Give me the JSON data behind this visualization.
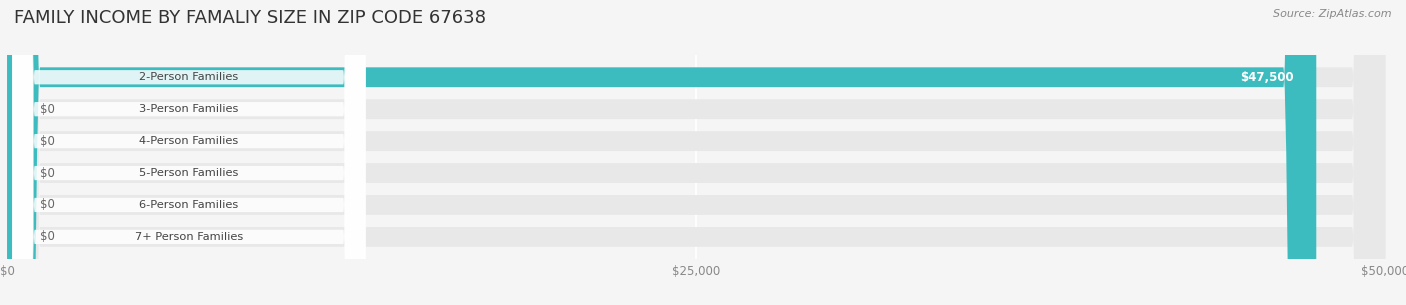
{
  "title": "FAMILY INCOME BY FAMALIY SIZE IN ZIP CODE 67638",
  "source": "Source: ZipAtlas.com",
  "categories": [
    "2-Person Families",
    "3-Person Families",
    "4-Person Families",
    "5-Person Families",
    "6-Person Families",
    "7+ Person Families"
  ],
  "values": [
    47500,
    0,
    0,
    0,
    0,
    0
  ],
  "bar_colors": [
    "#3dbcbf",
    "#a8a8d8",
    "#f4a0b8",
    "#f8c89a",
    "#f4a0a8",
    "#a8c4e8"
  ],
  "label_colors": [
    "#3dbcbf",
    "#a8a8d8",
    "#f4a0b8",
    "#f8c89a",
    "#f4a0a8",
    "#a8c4e8"
  ],
  "value_labels": [
    "$47,500",
    "$0",
    "$0",
    "$0",
    "$0",
    "$0"
  ],
  "xlim": [
    0,
    50000
  ],
  "xticks": [
    0,
    25000,
    50000
  ],
  "xtick_labels": [
    "$0",
    "$25,000",
    "$50,000"
  ],
  "background_color": "#f5f5f5",
  "bar_bg_color": "#e8e8e8",
  "title_fontsize": 13,
  "bar_height": 0.62,
  "grid_color": "#ffffff",
  "label_bg_color": "#ffffff"
}
